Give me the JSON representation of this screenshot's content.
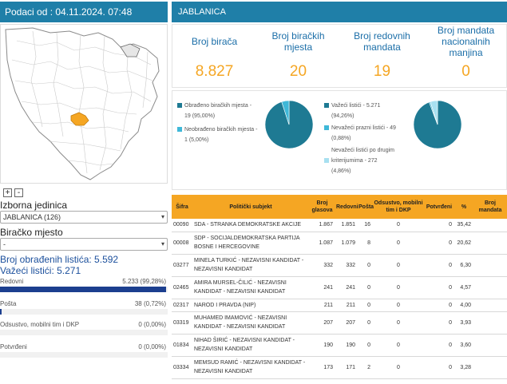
{
  "header": {
    "date_label": "Podaci od : 04.11.2024. 07:48",
    "region_title": "JABLANICA"
  },
  "map": {
    "zoom_in": "+",
    "zoom_out": "-",
    "highlight_color": "#f5a623"
  },
  "filters": {
    "unit_label": "Izborna jedinica",
    "unit_value": "JABLANICA (126)",
    "place_label": "Biračko mjesto",
    "place_value": "-"
  },
  "counts": {
    "processed": "Broj obrađenih listića: 5.592",
    "valid": "Važeći listići: 5.271"
  },
  "ballot_breakdown": [
    {
      "label": "Redovni",
      "value": "5.233 (99,28%)",
      "fraction": 0.9928
    },
    {
      "label": "Pošta",
      "value": "38 (0,72%)",
      "fraction": 0.0072
    },
    {
      "label": "Odsustvo, mobilni tim i DKP",
      "value": "0 (0,00%)",
      "fraction": 0
    },
    {
      "label": "Potvrđeni",
      "value": "0 (0,00%)",
      "fraction": 0
    }
  ],
  "stats": [
    {
      "title": "Broj birača",
      "value": "8.827"
    },
    {
      "title": "Broj biračkih mjesta",
      "value": "20"
    },
    {
      "title": "Broj redovnih mandata",
      "value": "19"
    },
    {
      "title": "Broj mandata nacionalnih manjina",
      "value": "0"
    }
  ],
  "pie_left": {
    "legend": [
      {
        "text1": "Obrađeno biračkih mjesta -",
        "text2": "19 (95,00%)",
        "color": "#1e7a93"
      },
      {
        "text1": "Neobrađeno biračkih mjesta -",
        "text2": "1 (5,00%)",
        "color": "#3fb8d8"
      }
    ],
    "slices": [
      {
        "value": 95.0,
        "color": "#1e7a93"
      },
      {
        "value": 5.0,
        "color": "#3fb8d8"
      }
    ]
  },
  "pie_right": {
    "legend": [
      {
        "text1": "Važeći listići - 5.271",
        "text2": "(94,26%)",
        "color": "#1e7a93"
      },
      {
        "text1": "Nevažeći prazni listići - 49",
        "text2": "(0,88%)",
        "color": "#3fb8d8"
      },
      {
        "text1": "Nevažeći listići po drugim",
        "text2": "kriterijumima - 272",
        "text3": "(4,86%)",
        "color": "#a8e0f0"
      }
    ],
    "slices": [
      {
        "value": 94.26,
        "color": "#1e7a93"
      },
      {
        "value": 0.88,
        "color": "#3fb8d8"
      },
      {
        "value": 4.86,
        "color": "#a8e0f0"
      }
    ]
  },
  "table": {
    "headers": [
      "Šifra",
      "Politički subjekt",
      "Broj glasova",
      "Redovni",
      "Pošta",
      "Odsustvo, mobilni tim i DKP",
      "Potvrđeni",
      "%",
      "Broj mandata"
    ],
    "rows": [
      {
        "code": "00090",
        "name": "SDA - STRANKA DEMOKRATSKE AKCIJE",
        "votes": "1.867",
        "regular": "1.851",
        "post": "16",
        "absent": "0",
        "confirmed": "0",
        "pct": "35,42",
        "mandates": ""
      },
      {
        "code": "00008",
        "name": "SDP - SOCIJALDEMOKRATSKA PARTIJA BOSNE I HERCEGOVINE",
        "votes": "1.087",
        "regular": "1.079",
        "post": "8",
        "absent": "0",
        "confirmed": "0",
        "pct": "20,62",
        "mandates": ""
      },
      {
        "code": "03277",
        "name": "MINELA TURKIĆ - NEZAVISNI KANDIDAT - NEZAVISNI KANDIDAT",
        "votes": "332",
        "regular": "332",
        "post": "0",
        "absent": "0",
        "confirmed": "0",
        "pct": "6,30",
        "mandates": ""
      },
      {
        "code": "02465",
        "name": "AMIRA MURSEL-ČILIĆ - NEZAVISNI KANDIDAT - NEZAVISNI KANDIDAT",
        "votes": "241",
        "regular": "241",
        "post": "0",
        "absent": "0",
        "confirmed": "0",
        "pct": "4,57",
        "mandates": ""
      },
      {
        "code": "02317",
        "name": "NAROD I PRAVDA (NIP)",
        "votes": "211",
        "regular": "211",
        "post": "0",
        "absent": "0",
        "confirmed": "0",
        "pct": "4,00",
        "mandates": ""
      },
      {
        "code": "03319",
        "name": "MUHAMED IMAMOVIĆ - NEZAVISNI KANDIDAT - NEZAVISNI KANDIDAT",
        "votes": "207",
        "regular": "207",
        "post": "0",
        "absent": "0",
        "confirmed": "0",
        "pct": "3,93",
        "mandates": ""
      },
      {
        "code": "01834",
        "name": "NIHAD ŠIRIĆ - NEZAVISNI KANDIDAT - NEZAVISNI KANDIDAT",
        "votes": "190",
        "regular": "190",
        "post": "0",
        "absent": "0",
        "confirmed": "0",
        "pct": "3,60",
        "mandates": ""
      },
      {
        "code": "03334",
        "name": "MEMSUD RAMIĆ - NEZAVISNI KANDIDAT - NEZAVISNI KANDIDAT",
        "votes": "173",
        "regular": "171",
        "post": "2",
        "absent": "0",
        "confirmed": "0",
        "pct": "3,28",
        "mandates": ""
      }
    ]
  }
}
